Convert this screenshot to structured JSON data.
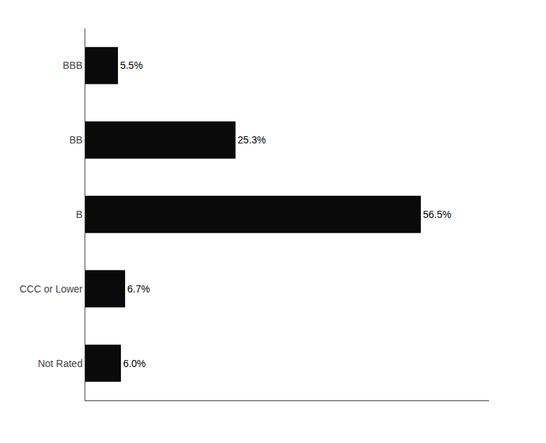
{
  "chart_data": {
    "type": "bar",
    "orientation": "horizontal",
    "categories": [
      "Not Rated",
      "CCC or Lower",
      "B",
      "BB",
      "BBB"
    ],
    "values": [
      6.0,
      6.7,
      56.5,
      25.3,
      5.5
    ],
    "value_labels": [
      "6.0%",
      "6.7%",
      "56.5%",
      "25.3%",
      "5.5%"
    ],
    "color": "#0a0a0a",
    "xlim": [
      0,
      68
    ],
    "data_labels": true,
    "tick_labels": "y",
    "grid": false
  }
}
